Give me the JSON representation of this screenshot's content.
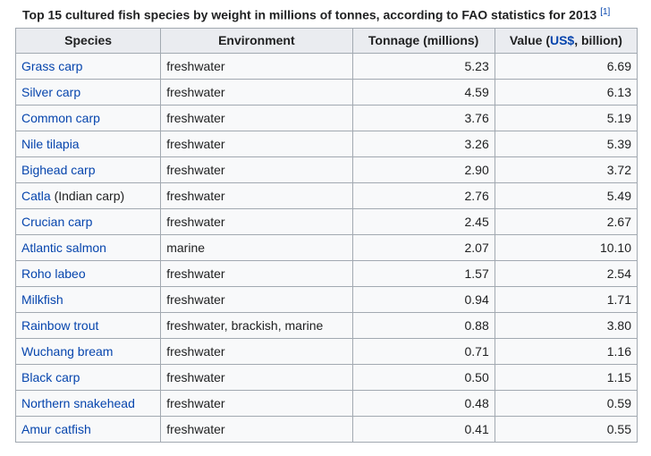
{
  "table": {
    "caption": "Top 15 cultured fish species by weight in millions of tonnes, according to FAO statistics for 2013",
    "citation": "[1]",
    "headers": {
      "species": "Species",
      "environment": "Environment",
      "tonnage": "Tonnage (millions)",
      "value_prefix": "Value (",
      "value_link": "US$",
      "value_suffix": ", billion)"
    },
    "rows": [
      {
        "species": "Grass carp",
        "species_note": "",
        "environment": "freshwater",
        "tonnage": "5.23",
        "value": "6.69"
      },
      {
        "species": "Silver carp",
        "species_note": "",
        "environment": "freshwater",
        "tonnage": "4.59",
        "value": "6.13"
      },
      {
        "species": "Common carp",
        "species_note": "",
        "environment": "freshwater",
        "tonnage": "3.76",
        "value": "5.19"
      },
      {
        "species": "Nile tilapia",
        "species_note": "",
        "environment": "freshwater",
        "tonnage": "3.26",
        "value": "5.39"
      },
      {
        "species": "Bighead carp",
        "species_note": "",
        "environment": "freshwater",
        "tonnage": "2.90",
        "value": "3.72"
      },
      {
        "species": "Catla",
        "species_note": " (Indian carp)",
        "environment": "freshwater",
        "tonnage": "2.76",
        "value": "5.49"
      },
      {
        "species": "Crucian carp",
        "species_note": "",
        "environment": "freshwater",
        "tonnage": "2.45",
        "value": "2.67"
      },
      {
        "species": "Atlantic salmon",
        "species_note": "",
        "environment": "marine",
        "tonnage": "2.07",
        "value": "10.10"
      },
      {
        "species": "Roho labeo",
        "species_note": "",
        "environment": "freshwater",
        "tonnage": "1.57",
        "value": "2.54"
      },
      {
        "species": "Milkfish",
        "species_note": "",
        "environment": "freshwater",
        "tonnage": "0.94",
        "value": "1.71"
      },
      {
        "species": "Rainbow trout",
        "species_note": "",
        "environment": "freshwater, brackish, marine",
        "tonnage": "0.88",
        "value": "3.80"
      },
      {
        "species": "Wuchang bream",
        "species_note": "",
        "environment": "freshwater",
        "tonnage": "0.71",
        "value": "1.16"
      },
      {
        "species": "Black carp",
        "species_note": "",
        "environment": "freshwater",
        "tonnage": "0.50",
        "value": "1.15"
      },
      {
        "species": "Northern snakehead",
        "species_note": "",
        "environment": "freshwater",
        "tonnage": "0.48",
        "value": "0.59"
      },
      {
        "species": "Amur catfish",
        "species_note": "",
        "environment": "freshwater",
        "tonnage": "0.41",
        "value": "0.55"
      }
    ]
  }
}
